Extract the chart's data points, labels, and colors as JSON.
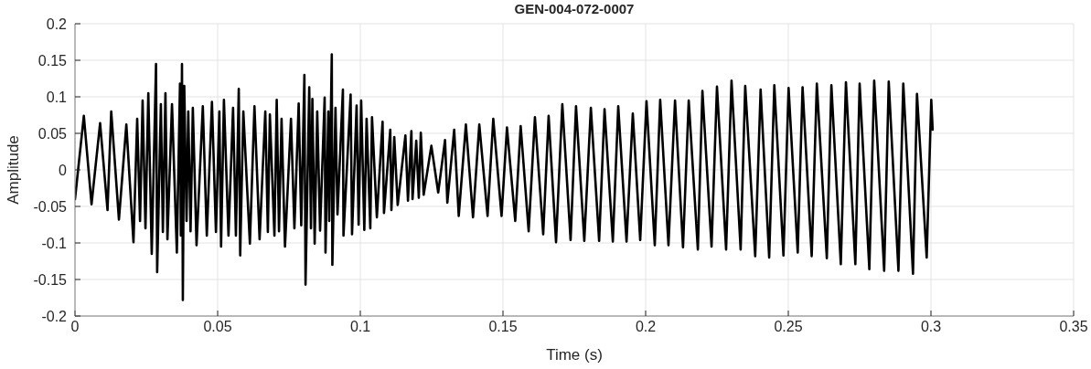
{
  "chart_data": {
    "type": "line",
    "title": "GEN-004-072-0007",
    "xlabel": "Time (s)",
    "ylabel": "Amplitude",
    "x": [
      0,
      0.0031,
      0.0058,
      0.0088,
      0.0114,
      0.0127,
      0.0154,
      0.018,
      0.0205,
      0.0218,
      0.0228,
      0.0237,
      0.0247,
      0.0257,
      0.0269,
      0.0284,
      0.0288,
      0.0301,
      0.0308,
      0.0317,
      0.0324,
      0.034,
      0.0357,
      0.0368,
      0.0371,
      0.0375,
      0.0378,
      0.0383,
      0.0391,
      0.0397,
      0.0405,
      0.0413,
      0.0426,
      0.0448,
      0.0462,
      0.048,
      0.0494,
      0.0506,
      0.0512,
      0.0522,
      0.0538,
      0.0554,
      0.0564,
      0.0574,
      0.0579,
      0.059,
      0.0613,
      0.0629,
      0.0647,
      0.0667,
      0.0676,
      0.0683,
      0.0699,
      0.0707,
      0.0715,
      0.0724,
      0.0736,
      0.0757,
      0.0769,
      0.0784,
      0.0793,
      0.0804,
      0.0808,
      0.0821,
      0.0827,
      0.0832,
      0.084,
      0.0849,
      0.0859,
      0.0875,
      0.0878,
      0.0888,
      0.0891,
      0.09,
      0.0902,
      0.0913,
      0.092,
      0.0939,
      0.0941,
      0.0966,
      0.0971,
      0.0987,
      0.0994,
      0.1003,
      0.1014,
      0.1022,
      0.1035,
      0.1041,
      0.1058,
      0.1078,
      0.1083,
      0.1105,
      0.1109,
      0.1119,
      0.1131,
      0.1158,
      0.1167,
      0.1179,
      0.1183,
      0.1196,
      0.1205,
      0.1212,
      0.1222,
      0.1249,
      0.1273,
      0.1297,
      0.1305,
      0.1329,
      0.1345,
      0.137,
      0.1395,
      0.1417,
      0.1446,
      0.1466,
      0.1495,
      0.1514,
      0.1543,
      0.1562,
      0.159,
      0.1612,
      0.1641,
      0.166,
      0.1686,
      0.1708,
      0.1737,
      0.1756,
      0.1785,
      0.1808,
      0.1837,
      0.1856,
      0.1885,
      0.1904,
      0.1933,
      0.1955,
      0.1981,
      0.2003,
      0.2032,
      0.2051,
      0.208,
      0.2103,
      0.2131,
      0.2151,
      0.2183,
      0.2199,
      0.2231,
      0.225,
      0.2282,
      0.2301,
      0.2333,
      0.2349,
      0.2384,
      0.2403,
      0.2433,
      0.2451,
      0.2483,
      0.2501,
      0.2533,
      0.255,
      0.2582,
      0.26,
      0.2635,
      0.2651,
      0.2684,
      0.2702,
      0.2735,
      0.275,
      0.2784,
      0.2801,
      0.2836,
      0.2852,
      0.2886,
      0.2903,
      0.2937,
      0.2951,
      0.2985,
      0.3001,
      0.3006
    ],
    "values": [
      -0.04,
      0.074,
      -0.047,
      0.064,
      -0.055,
      0.08,
      -0.068,
      0.062,
      -0.099,
      0.07,
      -0.07,
      0.095,
      -0.08,
      0.105,
      -0.115,
      0.145,
      -0.14,
      0.09,
      -0.085,
      0.105,
      -0.095,
      0.09,
      -0.113,
      0.118,
      -0.09,
      0.145,
      -0.178,
      0.115,
      -0.07,
      0.08,
      -0.084,
      0.085,
      -0.103,
      0.087,
      -0.09,
      0.093,
      -0.085,
      0.08,
      -0.105,
      0.096,
      -0.09,
      0.085,
      -0.09,
      0.111,
      -0.117,
      0.08,
      -0.101,
      0.087,
      -0.095,
      0.08,
      -0.085,
      0.076,
      -0.09,
      0.096,
      -0.084,
      0.07,
      -0.105,
      0.07,
      -0.08,
      0.091,
      -0.076,
      0.13,
      -0.157,
      0.113,
      -0.08,
      0.097,
      -0.101,
      0.08,
      -0.083,
      0.099,
      -0.113,
      0.08,
      -0.07,
      0.158,
      -0.13,
      0.085,
      -0.061,
      0.11,
      -0.09,
      0.103,
      -0.088,
      0.088,
      -0.075,
      0.095,
      -0.082,
      0.07,
      -0.08,
      0.072,
      -0.065,
      0.066,
      -0.059,
      0.055,
      -0.055,
      0.045,
      -0.048,
      0.047,
      -0.042,
      0.053,
      -0.04,
      0.04,
      -0.038,
      0.051,
      -0.034,
      0.033,
      -0.031,
      0.041,
      -0.045,
      0.055,
      -0.063,
      0.062,
      -0.065,
      0.062,
      -0.063,
      0.07,
      -0.063,
      0.058,
      -0.07,
      0.06,
      -0.084,
      0.072,
      -0.088,
      0.074,
      -0.099,
      0.09,
      -0.096,
      0.087,
      -0.097,
      0.085,
      -0.097,
      0.083,
      -0.098,
      0.087,
      -0.098,
      0.077,
      -0.096,
      0.094,
      -0.103,
      0.096,
      -0.103,
      0.095,
      -0.106,
      0.095,
      -0.109,
      0.108,
      -0.105,
      0.114,
      -0.109,
      0.122,
      -0.109,
      0.115,
      -0.118,
      0.11,
      -0.12,
      0.116,
      -0.117,
      0.112,
      -0.113,
      0.113,
      -0.118,
      0.118,
      -0.121,
      0.116,
      -0.129,
      0.12,
      -0.129,
      0.118,
      -0.136,
      0.122,
      -0.138,
      0.121,
      -0.138,
      0.118,
      -0.142,
      0.104,
      -0.12,
      0.096,
      0.055
    ],
    "color": "#000000",
    "line_style": "solid",
    "xlim": [
      0,
      0.35
    ],
    "xticks": [
      0,
      0.05,
      0.1,
      0.15,
      0.2,
      0.25,
      0.3,
      0.35
    ],
    "ylim": [
      -0.2,
      0.2
    ],
    "yticks": [
      -0.2,
      -0.15,
      -0.1,
      -0.05,
      0,
      0.05,
      0.1,
      0.15,
      0.2
    ],
    "grid": true
  }
}
